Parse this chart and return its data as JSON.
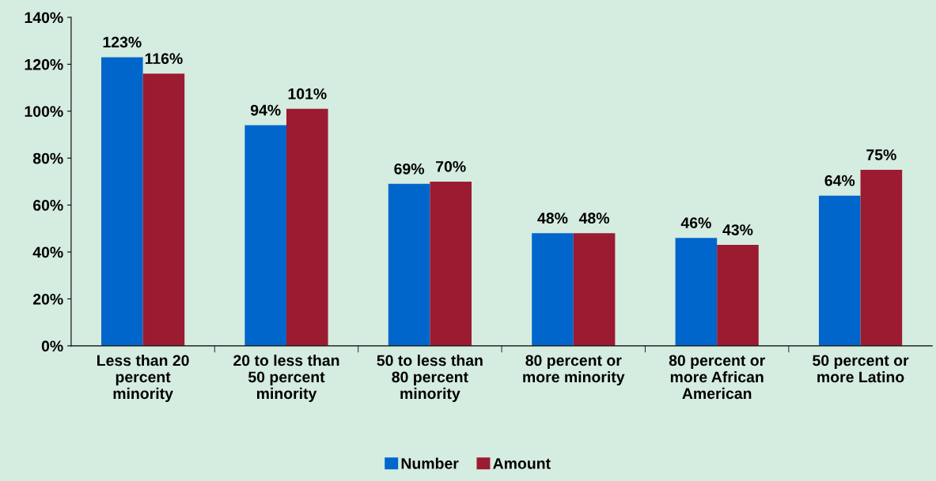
{
  "chart_data": {
    "type": "bar",
    "categories": [
      "Less than 20\npercent\nminority",
      "20 to less than\n50 percent\nminority",
      "50 to less than\n80 percent\nminority",
      "80 percent or\nmore minority",
      "80 percent or\nmore African\nAmerican",
      "50 percent or\nmore Latino"
    ],
    "series": [
      {
        "name": "Number",
        "color": "#0066cc",
        "values": [
          123,
          94,
          69,
          48,
          46,
          64
        ],
        "value_labels": [
          "123%",
          "94%",
          "69%",
          "48%",
          "46%",
          "64%"
        ]
      },
      {
        "name": "Amount",
        "color": "#9b1b30",
        "values": [
          116,
          101,
          70,
          48,
          43,
          75
        ],
        "value_labels": [
          "116%",
          "101%",
          "70%",
          "48%",
          "43%",
          "75%"
        ]
      }
    ],
    "ylim": [
      0,
      140
    ],
    "yticks": [
      {
        "value": 0,
        "label": "0%"
      },
      {
        "value": 20,
        "label": "20%"
      },
      {
        "value": 40,
        "label": "40%"
      },
      {
        "value": 60,
        "label": "60%"
      },
      {
        "value": 80,
        "label": "80%"
      },
      {
        "value": 100,
        "label": "100%"
      },
      {
        "value": 120,
        "label": "120%"
      },
      {
        "value": 140,
        "label": "140%"
      }
    ],
    "grid": false,
    "legend": "bottom"
  }
}
